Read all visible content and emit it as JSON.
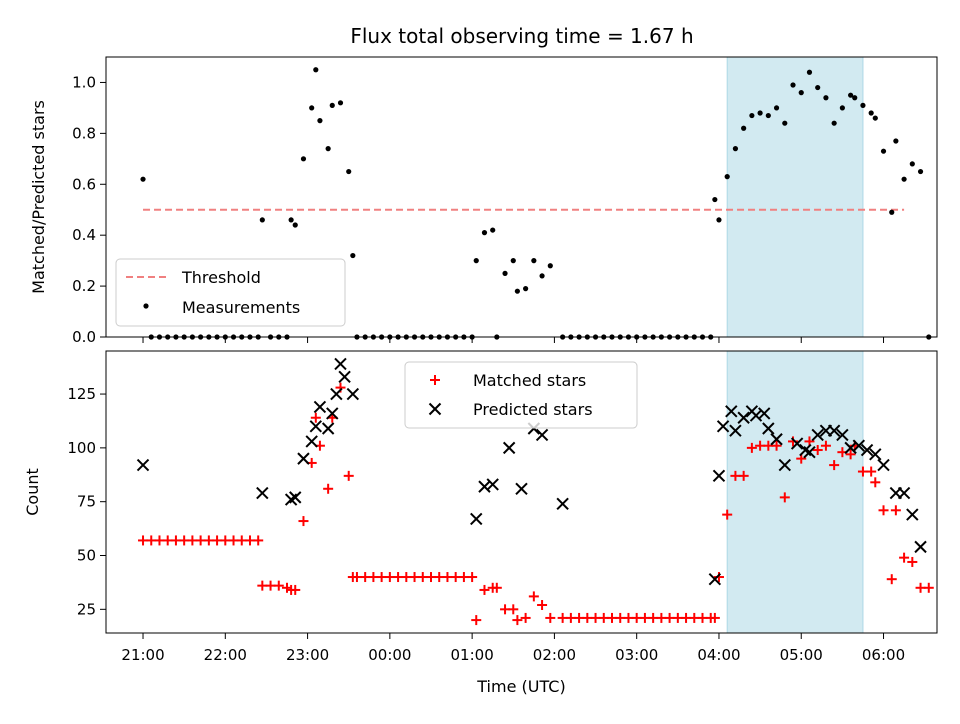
{
  "chart_data": [
    {
      "type": "scatter",
      "title": "Flux total observing time = 1.67 h",
      "ylabel": "Matched/Predicted stars",
      "ylim": [
        0,
        1.1
      ],
      "yticks": [
        0.0,
        0.2,
        0.4,
        0.6,
        0.8,
        1.0
      ],
      "ytick_labels": [
        "0.0",
        "0.2",
        "0.4",
        "0.6",
        "0.8",
        "1.0"
      ],
      "x_unit": "hours since 21:00 UTC",
      "xlim": [
        -0.45,
        9.65
      ],
      "legend": {
        "placement": "lower-left",
        "entries": [
          "Threshold",
          "Measurements"
        ]
      },
      "shaded_region": {
        "x_start": 7.1,
        "x_end": 8.75,
        "color": "#add8e6"
      },
      "threshold": {
        "name": "Threshold",
        "value": 0.5,
        "x_start": 0,
        "x_end": 9.25,
        "color": "#f08080"
      },
      "series": [
        {
          "name": "Measurements",
          "color": "#000000",
          "points": [
            [
              0.0,
              0.62
            ],
            [
              0.1,
              0.0
            ],
            [
              0.2,
              0.0
            ],
            [
              0.3,
              0.0
            ],
            [
              0.4,
              0.0
            ],
            [
              0.5,
              0.0
            ],
            [
              0.6,
              0.0
            ],
            [
              0.7,
              0.0
            ],
            [
              0.8,
              0.0
            ],
            [
              0.9,
              0.0
            ],
            [
              1.0,
              0.0
            ],
            [
              1.1,
              0.0
            ],
            [
              1.2,
              0.0
            ],
            [
              1.3,
              0.0
            ],
            [
              1.4,
              0.0
            ],
            [
              1.45,
              0.46
            ],
            [
              1.55,
              0.0
            ],
            [
              1.65,
              0.0
            ],
            [
              1.75,
              0.0
            ],
            [
              1.8,
              0.46
            ],
            [
              1.85,
              0.44
            ],
            [
              1.95,
              0.7
            ],
            [
              2.05,
              0.9
            ],
            [
              2.1,
              1.05
            ],
            [
              2.15,
              0.85
            ],
            [
              2.25,
              0.74
            ],
            [
              2.3,
              0.91
            ],
            [
              2.4,
              0.92
            ],
            [
              2.5,
              0.65
            ],
            [
              2.55,
              0.32
            ],
            [
              2.6,
              0.0
            ],
            [
              2.7,
              0.0
            ],
            [
              2.8,
              0.0
            ],
            [
              2.9,
              0.0
            ],
            [
              3.0,
              0.0
            ],
            [
              3.1,
              0.0
            ],
            [
              3.2,
              0.0
            ],
            [
              3.3,
              0.0
            ],
            [
              3.4,
              0.0
            ],
            [
              3.5,
              0.0
            ],
            [
              3.6,
              0.0
            ],
            [
              3.7,
              0.0
            ],
            [
              3.8,
              0.0
            ],
            [
              3.9,
              0.0
            ],
            [
              4.0,
              0.0
            ],
            [
              4.05,
              0.3
            ],
            [
              4.15,
              0.41
            ],
            [
              4.25,
              0.42
            ],
            [
              4.3,
              0.0
            ],
            [
              4.4,
              0.25
            ],
            [
              4.5,
              0.3
            ],
            [
              4.55,
              0.18
            ],
            [
              4.65,
              0.19
            ],
            [
              4.75,
              0.3
            ],
            [
              4.85,
              0.24
            ],
            [
              4.95,
              0.28
            ],
            [
              5.1,
              0.0
            ],
            [
              5.2,
              0.0
            ],
            [
              5.3,
              0.0
            ],
            [
              5.4,
              0.0
            ],
            [
              5.5,
              0.0
            ],
            [
              5.6,
              0.0
            ],
            [
              5.7,
              0.0
            ],
            [
              5.8,
              0.0
            ],
            [
              5.9,
              0.0
            ],
            [
              6.0,
              0.0
            ],
            [
              6.1,
              0.0
            ],
            [
              6.2,
              0.0
            ],
            [
              6.3,
              0.0
            ],
            [
              6.4,
              0.0
            ],
            [
              6.5,
              0.0
            ],
            [
              6.6,
              0.0
            ],
            [
              6.7,
              0.0
            ],
            [
              6.8,
              0.0
            ],
            [
              6.9,
              0.0
            ],
            [
              6.95,
              0.54
            ],
            [
              7.0,
              0.46
            ],
            [
              7.1,
              0.63
            ],
            [
              7.2,
              0.74
            ],
            [
              7.3,
              0.82
            ],
            [
              7.4,
              0.87
            ],
            [
              7.5,
              0.88
            ],
            [
              7.6,
              0.87
            ],
            [
              7.7,
              0.9
            ],
            [
              7.8,
              0.84
            ],
            [
              7.9,
              0.99
            ],
            [
              8.0,
              0.96
            ],
            [
              8.1,
              1.04
            ],
            [
              8.2,
              0.98
            ],
            [
              8.3,
              0.94
            ],
            [
              8.4,
              0.84
            ],
            [
              8.5,
              0.9
            ],
            [
              8.6,
              0.95
            ],
            [
              8.65,
              0.94
            ],
            [
              8.75,
              0.91
            ],
            [
              8.85,
              0.88
            ],
            [
              8.9,
              0.86
            ],
            [
              9.0,
              0.73
            ],
            [
              9.1,
              0.49
            ],
            [
              9.15,
              0.77
            ],
            [
              9.25,
              0.62
            ],
            [
              9.35,
              0.68
            ],
            [
              9.45,
              0.65
            ],
            [
              9.55,
              0.0
            ]
          ]
        }
      ]
    },
    {
      "type": "scatter",
      "xlabel": "Time (UTC)",
      "ylabel": "Count",
      "ylim": [
        14,
        145
      ],
      "yticks": [
        25,
        50,
        75,
        100,
        125
      ],
      "ytick_labels": [
        "25",
        "50",
        "75",
        "100",
        "125"
      ],
      "x_unit": "hours since 21:00 UTC",
      "xlim": [
        -0.45,
        9.65
      ],
      "xticks": [
        0,
        1,
        2,
        3,
        4,
        5,
        6,
        7,
        8,
        9
      ],
      "xtick_labels": [
        "21:00",
        "22:00",
        "23:00",
        "00:00",
        "01:00",
        "02:00",
        "03:00",
        "04:00",
        "05:00",
        "06:00"
      ],
      "legend": {
        "placement": "upper-center",
        "entries": [
          "Matched stars",
          "Predicted stars"
        ]
      },
      "shaded_region": {
        "x_start": 7.1,
        "x_end": 8.75,
        "color": "#add8e6"
      },
      "series": [
        {
          "name": "Matched stars",
          "marker": "plus",
          "color": "#ff0000",
          "points": [
            [
              0.0,
              57
            ],
            [
              0.1,
              57
            ],
            [
              0.2,
              57
            ],
            [
              0.3,
              57
            ],
            [
              0.4,
              57
            ],
            [
              0.5,
              57
            ],
            [
              0.6,
              57
            ],
            [
              0.7,
              57
            ],
            [
              0.8,
              57
            ],
            [
              0.9,
              57
            ],
            [
              1.0,
              57
            ],
            [
              1.1,
              57
            ],
            [
              1.2,
              57
            ],
            [
              1.3,
              57
            ],
            [
              1.4,
              57
            ],
            [
              1.45,
              36
            ],
            [
              1.55,
              36
            ],
            [
              1.65,
              36
            ],
            [
              1.75,
              35
            ],
            [
              1.8,
              34
            ],
            [
              1.85,
              34
            ],
            [
              1.95,
              66
            ],
            [
              2.05,
              93
            ],
            [
              2.1,
              114
            ],
            [
              2.15,
              101
            ],
            [
              2.25,
              81
            ],
            [
              2.3,
              114
            ],
            [
              2.4,
              128
            ],
            [
              2.5,
              87
            ],
            [
              2.55,
              40
            ],
            [
              2.6,
              40
            ],
            [
              2.7,
              40
            ],
            [
              2.8,
              40
            ],
            [
              2.9,
              40
            ],
            [
              3.0,
              40
            ],
            [
              3.1,
              40
            ],
            [
              3.2,
              40
            ],
            [
              3.3,
              40
            ],
            [
              3.4,
              40
            ],
            [
              3.5,
              40
            ],
            [
              3.6,
              40
            ],
            [
              3.7,
              40
            ],
            [
              3.8,
              40
            ],
            [
              3.9,
              40
            ],
            [
              4.0,
              40
            ],
            [
              4.05,
              20
            ],
            [
              4.15,
              34
            ],
            [
              4.25,
              35
            ],
            [
              4.3,
              35
            ],
            [
              4.4,
              25
            ],
            [
              4.5,
              25
            ],
            [
              4.55,
              20
            ],
            [
              4.65,
              21
            ],
            [
              4.75,
              31
            ],
            [
              4.85,
              27
            ],
            [
              4.95,
              21
            ],
            [
              5.1,
              21
            ],
            [
              5.2,
              21
            ],
            [
              5.3,
              21
            ],
            [
              5.4,
              21
            ],
            [
              5.5,
              21
            ],
            [
              5.6,
              21
            ],
            [
              5.7,
              21
            ],
            [
              5.8,
              21
            ],
            [
              5.9,
              21
            ],
            [
              6.0,
              21
            ],
            [
              6.1,
              21
            ],
            [
              6.2,
              21
            ],
            [
              6.3,
              21
            ],
            [
              6.4,
              21
            ],
            [
              6.5,
              21
            ],
            [
              6.6,
              21
            ],
            [
              6.7,
              21
            ],
            [
              6.8,
              21
            ],
            [
              6.9,
              21
            ],
            [
              6.95,
              21
            ],
            [
              7.0,
              40
            ],
            [
              7.1,
              69
            ],
            [
              7.2,
              87
            ],
            [
              7.3,
              87
            ],
            [
              7.4,
              100
            ],
            [
              7.5,
              101
            ],
            [
              7.6,
              101
            ],
            [
              7.7,
              101
            ],
            [
              7.8,
              77
            ],
            [
              7.9,
              103
            ],
            [
              8.0,
              95
            ],
            [
              8.1,
              103
            ],
            [
              8.2,
              99
            ],
            [
              8.3,
              101
            ],
            [
              8.4,
              92
            ],
            [
              8.5,
              98
            ],
            [
              8.6,
              97
            ],
            [
              8.65,
              101
            ],
            [
              8.75,
              89
            ],
            [
              8.85,
              89
            ],
            [
              8.9,
              84
            ],
            [
              9.0,
              71
            ],
            [
              9.1,
              39
            ],
            [
              9.15,
              71
            ],
            [
              9.25,
              49
            ],
            [
              9.35,
              47
            ],
            [
              9.45,
              35
            ],
            [
              9.55,
              35
            ]
          ]
        },
        {
          "name": "Predicted stars",
          "marker": "x",
          "color": "#000000",
          "points": [
            [
              0.0,
              92
            ],
            [
              1.45,
              79
            ],
            [
              1.8,
              76
            ],
            [
              1.85,
              77
            ],
            [
              1.95,
              95
            ],
            [
              2.05,
              103
            ],
            [
              2.1,
              110
            ],
            [
              2.15,
              119
            ],
            [
              2.25,
              109
            ],
            [
              2.3,
              116
            ],
            [
              2.35,
              125
            ],
            [
              2.4,
              139
            ],
            [
              2.45,
              133
            ],
            [
              2.55,
              125
            ],
            [
              4.05,
              67
            ],
            [
              4.15,
              82
            ],
            [
              4.25,
              83
            ],
            [
              4.45,
              100
            ],
            [
              4.6,
              81
            ],
            [
              4.75,
              109
            ],
            [
              4.85,
              106
            ],
            [
              5.1,
              74
            ],
            [
              6.95,
              39
            ],
            [
              7.0,
              87
            ],
            [
              7.05,
              110
            ],
            [
              7.15,
              117
            ],
            [
              7.2,
              108
            ],
            [
              7.3,
              114
            ],
            [
              7.4,
              117
            ],
            [
              7.45,
              115
            ],
            [
              7.55,
              116
            ],
            [
              7.6,
              109
            ],
            [
              7.7,
              104
            ],
            [
              7.8,
              92
            ],
            [
              7.95,
              102
            ],
            [
              8.05,
              99
            ],
            [
              8.1,
              98
            ],
            [
              8.2,
              106
            ],
            [
              8.3,
              108
            ],
            [
              8.4,
              108
            ],
            [
              8.5,
              106
            ],
            [
              8.6,
              100
            ],
            [
              8.7,
              101
            ],
            [
              8.8,
              99
            ],
            [
              8.9,
              97
            ],
            [
              9.0,
              92
            ],
            [
              9.15,
              79
            ],
            [
              9.25,
              79
            ],
            [
              9.35,
              69
            ],
            [
              9.45,
              54
            ]
          ]
        }
      ]
    }
  ]
}
